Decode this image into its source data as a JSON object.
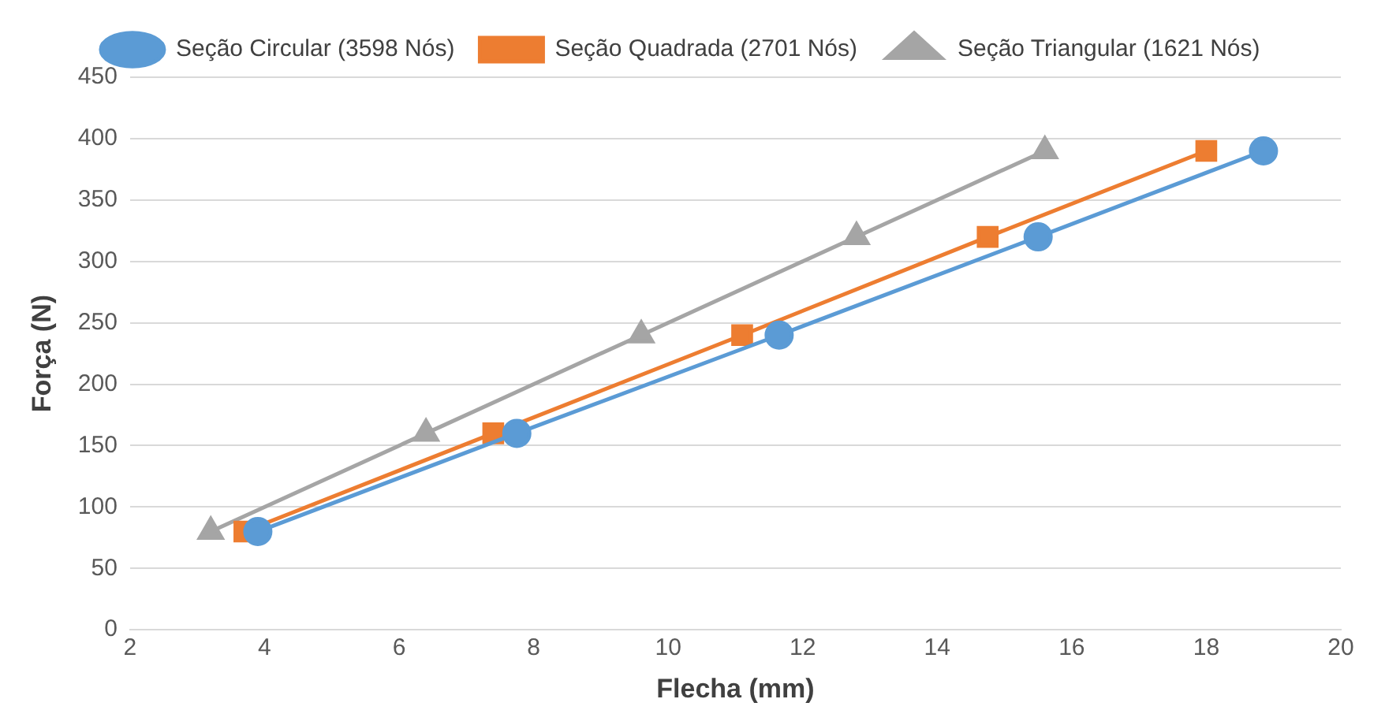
{
  "chart_data": {
    "type": "line",
    "xlabel": "Flecha (mm)",
    "ylabel": "Força (N)",
    "xlim": [
      2,
      20
    ],
    "xticks": [
      2,
      4,
      6,
      8,
      10,
      12,
      14,
      16,
      18,
      20
    ],
    "ylim": [
      0,
      450
    ],
    "yticks": [
      0,
      50,
      100,
      150,
      200,
      250,
      300,
      350,
      400,
      450
    ],
    "grid": "y",
    "legend": "top",
    "line_style": "solid",
    "series": [
      {
        "name": "Seção Circular (3598 Nós)",
        "color": "#5b9bd5",
        "marker": "circle",
        "x": [
          3.9,
          7.75,
          11.65,
          15.5,
          18.85
        ],
        "values": [
          80,
          160,
          240,
          320,
          390
        ]
      },
      {
        "name": "Seção Quadrada (2701 Nós)",
        "color": "#ed7d31",
        "marker": "square",
        "x": [
          3.7,
          7.4,
          11.1,
          14.75,
          18
        ],
        "values": [
          80,
          160,
          240,
          320,
          390
        ]
      },
      {
        "name": "Seção Triangular (1621 Nós)",
        "color": "#a5a5a5",
        "marker": "triangle",
        "x": [
          3.2,
          6.4,
          9.6,
          12.8,
          15.6
        ],
        "values": [
          80,
          160,
          240,
          320,
          390
        ]
      }
    ]
  }
}
